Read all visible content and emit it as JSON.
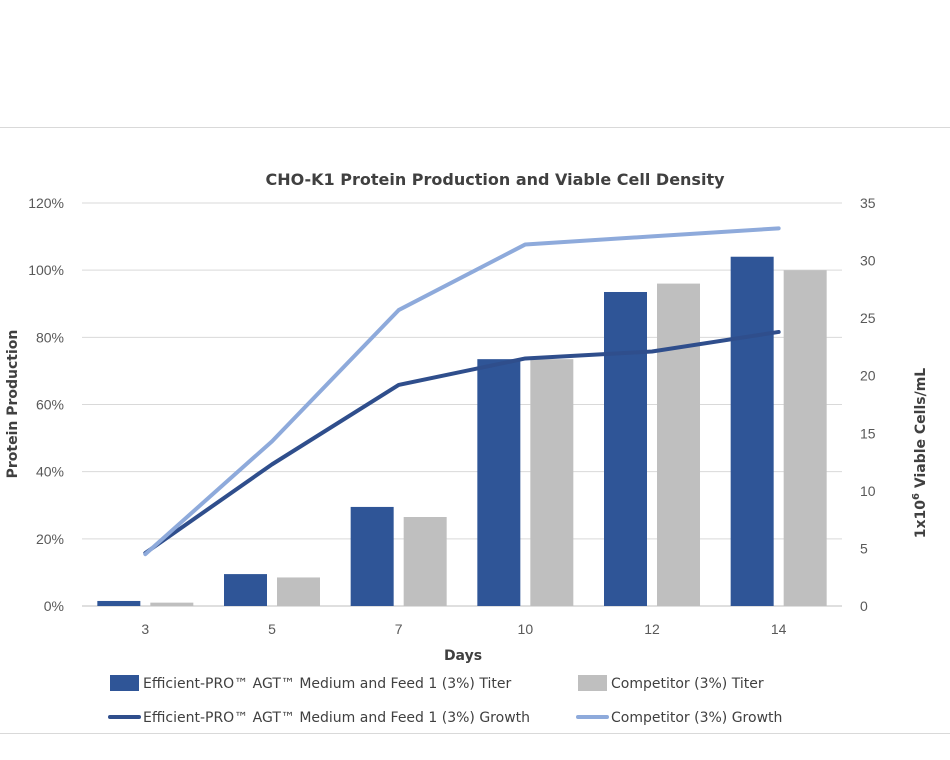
{
  "chart_data": {
    "type": "bar",
    "title": "CHO-K1 Protein Production and Viable Cell Density",
    "xlabel": "Days",
    "ylabel": "Protein Production",
    "y2label_prefix": "1x10",
    "y2label_sup": "6",
    "y2label_suffix": " Viable Cells/mL",
    "categories": [
      "3",
      "5",
      "7",
      "10",
      "12",
      "14"
    ],
    "ylim": [
      0,
      120
    ],
    "y_ticks": [
      "0%",
      "20%",
      "40%",
      "60%",
      "80%",
      "100%",
      "120%"
    ],
    "y_tick_values": [
      0,
      20,
      40,
      60,
      80,
      100,
      120
    ],
    "y2lim": [
      0,
      35
    ],
    "y2_ticks": [
      "0",
      "5",
      "10",
      "15",
      "20",
      "25",
      "30",
      "35"
    ],
    "y2_tick_values": [
      0,
      5,
      10,
      15,
      20,
      25,
      30,
      35
    ],
    "grid": true,
    "legend_position": "bottom",
    "series": [
      {
        "name": "Efficient-PRO™ AGT™ Medium and Feed 1 (3%) Titer",
        "kind": "bar",
        "axis": "left",
        "color": "#2f5597",
        "values": [
          1.5,
          9.5,
          29.5,
          73.5,
          93.5,
          104
        ]
      },
      {
        "name": "Competitor (3%) Titer",
        "kind": "bar",
        "axis": "left",
        "color": "#bfbfbf",
        "values": [
          1,
          8.5,
          26.5,
          73.5,
          96,
          100
        ]
      },
      {
        "name": "Efficient-PRO™ AGT™ Medium and Feed 1 (3%) Growth",
        "kind": "line",
        "axis": "right",
        "color": "#2f4e8c",
        "values": [
          4.6,
          12.3,
          19.2,
          21.5,
          22.1,
          23.8
        ]
      },
      {
        "name": "Competitor (3%) Growth",
        "kind": "line",
        "axis": "right",
        "color": "#8eaadb",
        "values": [
          4.5,
          14.3,
          25.7,
          31.4,
          32.1,
          32.8
        ]
      }
    ]
  }
}
